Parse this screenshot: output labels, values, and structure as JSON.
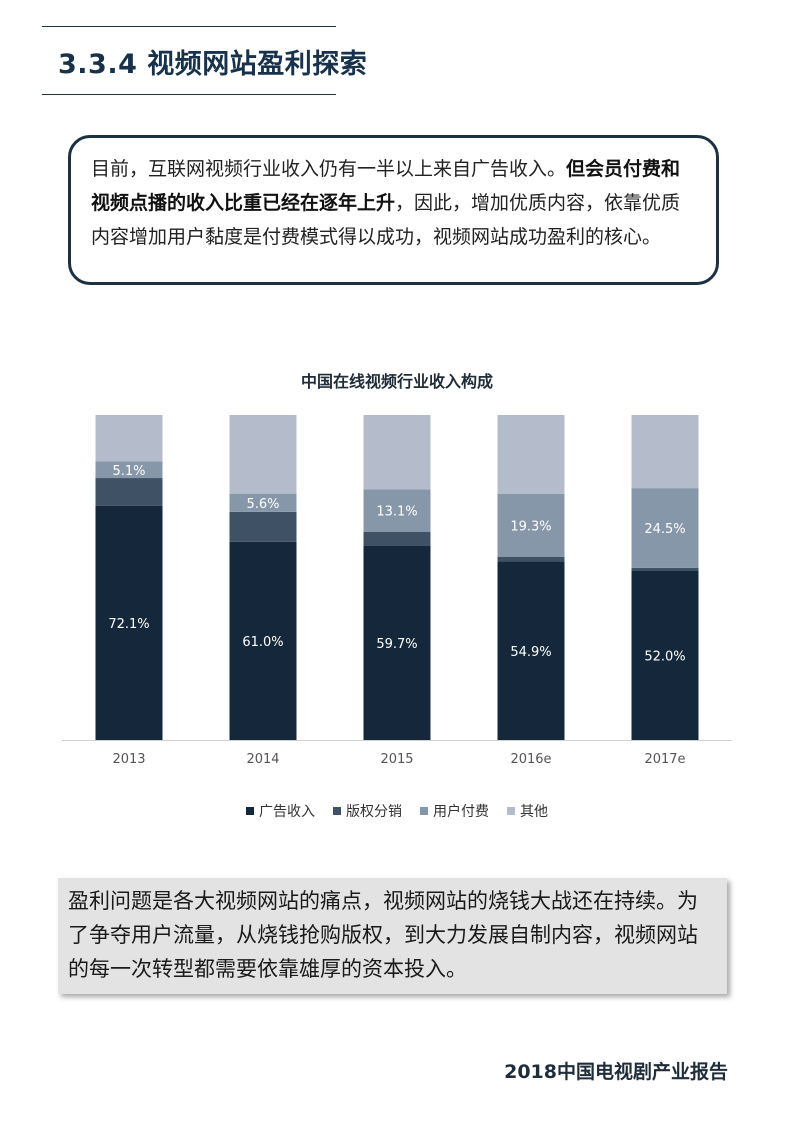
{
  "header": {
    "section_title": "3.3.4 视频网站盈利探索"
  },
  "intro": {
    "text_plain_1": "目前，互联网视频行业收入仍有一半以上来自广告收入。",
    "text_bold": "但会员付费和视频点播的收入比重已经在逐年上升",
    "text_plain_2": "，因此，增加优质内容，依靠优质内容增加用户黏度是付费模式得以成功，视频网站成功盈利的核心。"
  },
  "chart_data": {
    "type": "bar",
    "stacked": true,
    "percent_stacked": true,
    "title": "中国在线视频行业收入构成",
    "categories": [
      "2013",
      "2014",
      "2015",
      "2016e",
      "2017e"
    ],
    "series": [
      {
        "name": "广告收入",
        "color": "#15283b",
        "values": [
          72.1,
          61.0,
          59.7,
          54.9,
          52.0
        ],
        "labels": [
          "72.1%",
          "61.0%",
          "59.7%",
          "54.9%",
          "52.0%"
        ]
      },
      {
        "name": "版权分销",
        "color": "#3e5165",
        "values": [
          8.5,
          9.2,
          4.3,
          1.5,
          1.0
        ],
        "labels": [
          "",
          "",
          "",
          "",
          ""
        ]
      },
      {
        "name": "用户付费",
        "color": "#8797aa",
        "values": [
          5.1,
          5.6,
          13.1,
          19.3,
          24.5
        ],
        "labels": [
          "5.1%",
          "5.6%",
          "13.1%",
          "19.3%",
          "24.5%"
        ]
      },
      {
        "name": "其他",
        "color": "#b4bccb",
        "values": [
          14.3,
          24.2,
          22.9,
          24.3,
          22.5
        ],
        "labels": [
          "",
          "",
          "",
          "",
          ""
        ]
      }
    ],
    "ylim": [
      0,
      100
    ],
    "legend_position": "bottom",
    "grid": false
  },
  "outro": {
    "text": "盈利问题是各大视频网站的痛点，视频网站的烧钱大战还在持续。为了争夺用户流量，从烧钱抢购版权，到大力发展自制内容，视频网站的每一次转型都需要依靠雄厚的资本投入。"
  },
  "footer": {
    "report_name": "2018中国电视剧产业报告"
  }
}
